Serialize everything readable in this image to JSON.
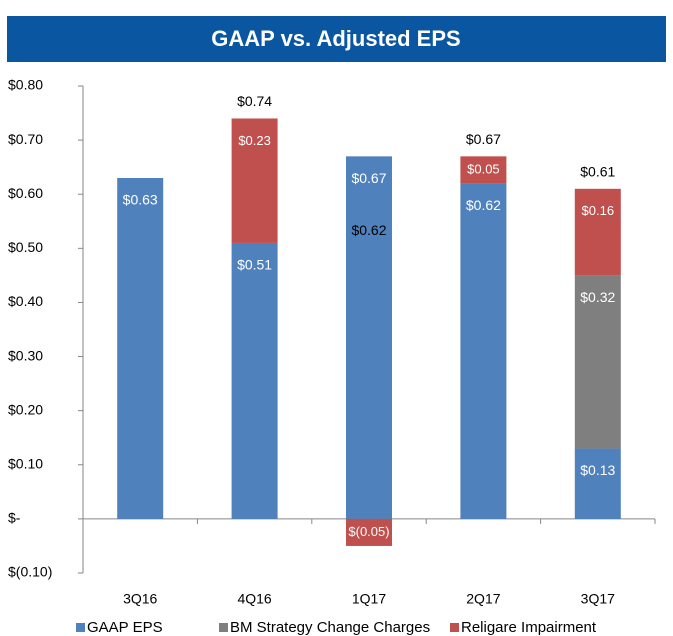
{
  "chart_data": {
    "type": "stacked_bar",
    "title": "GAAP vs. Adjusted EPS",
    "categories": [
      "3Q16",
      "4Q16",
      "1Q17",
      "2Q17",
      "3Q17"
    ],
    "series": [
      {
        "name": "GAAP EPS",
        "color": "#4f81bd",
        "values": [
          0.63,
          0.51,
          0.67,
          0.62,
          0.13
        ],
        "value_labels": [
          "$0.63",
          "$0.51",
          "$0.67",
          "$0.62",
          "$0.13"
        ]
      },
      {
        "name": "BM Strategy Change Charges",
        "color": "#7f7f7f",
        "values": [
          null,
          null,
          null,
          null,
          0.32
        ],
        "value_labels": [
          null,
          null,
          null,
          null,
          "$0.32"
        ]
      },
      {
        "name": "Religare Impairment",
        "color": "#c0504d",
        "values": [
          null,
          0.23,
          -0.05,
          0.05,
          0.16
        ],
        "value_labels": [
          null,
          "$0.23",
          "$(0.05)",
          "$0.05",
          "$0.16"
        ]
      }
    ],
    "totals": [
      null,
      0.74,
      0.62,
      0.67,
      0.61
    ],
    "total_labels": [
      null,
      "$0.74",
      "$0.62",
      "$0.67",
      "$0.61"
    ],
    "ylim": [
      -0.1,
      0.8
    ],
    "yticks": [
      {
        "value": -0.1,
        "label": "$(0.10)"
      },
      {
        "value": 0,
        "label": "$-"
      },
      {
        "value": 0.1,
        "label": "$0.10"
      },
      {
        "value": 0.2,
        "label": "$0.20"
      },
      {
        "value": 0.3,
        "label": "$0.30"
      },
      {
        "value": 0.4,
        "label": "$0.40"
      },
      {
        "value": 0.5,
        "label": "$0.50"
      },
      {
        "value": 0.6,
        "label": "$0.60"
      },
      {
        "value": 0.7,
        "label": "$0.70"
      },
      {
        "value": 0.8,
        "label": "$0.80"
      }
    ],
    "legend": "bottom"
  }
}
